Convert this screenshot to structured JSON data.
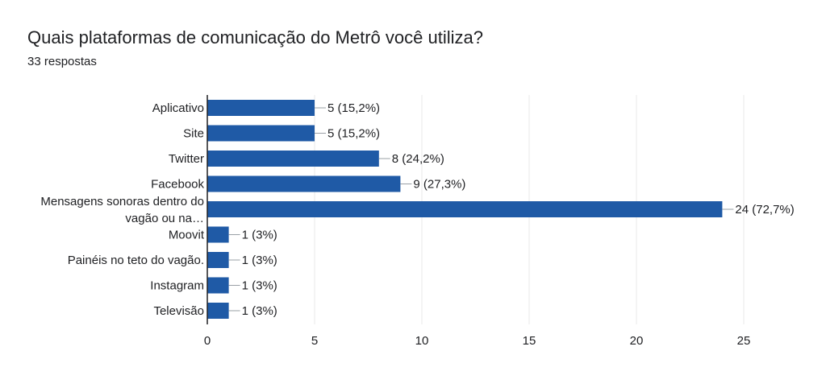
{
  "header": {
    "title": "Quais plataformas de comunicação do Metrô você utiliza?",
    "subtitle": "33 respostas"
  },
  "colors": {
    "bar": "#1f5aa6",
    "grid": "#e8e8e8",
    "axis": "#202124",
    "text": "#202124"
  },
  "chart_data": {
    "type": "bar",
    "orientation": "horizontal",
    "title": "Quais plataformas de comunicação do Metrô você utiliza?",
    "subtitle": "33 respostas",
    "categories": [
      [
        "Aplicativo"
      ],
      [
        "Site"
      ],
      [
        "Twitter"
      ],
      [
        "Facebook"
      ],
      [
        "Mensagens sonoras dentro do",
        "vagão ou na…"
      ],
      [
        "Moovit"
      ],
      [
        "Painéis no teto do vagão."
      ],
      [
        "Instagram"
      ],
      [
        "Televisão"
      ]
    ],
    "values": [
      5,
      5,
      8,
      9,
      24,
      1,
      1,
      1,
      1
    ],
    "data_labels": [
      "5 (15,2%)",
      "5 (15,2%)",
      "8 (24,2%)",
      "9 (27,3%)",
      "24 (72,7%)",
      "1 (3%)",
      "1 (3%)",
      "1 (3%)",
      "1 (3%)"
    ],
    "xlim": [
      0,
      25
    ],
    "xticks": [
      0,
      5,
      10,
      15,
      20,
      25
    ],
    "grid": true,
    "legend": false
  }
}
